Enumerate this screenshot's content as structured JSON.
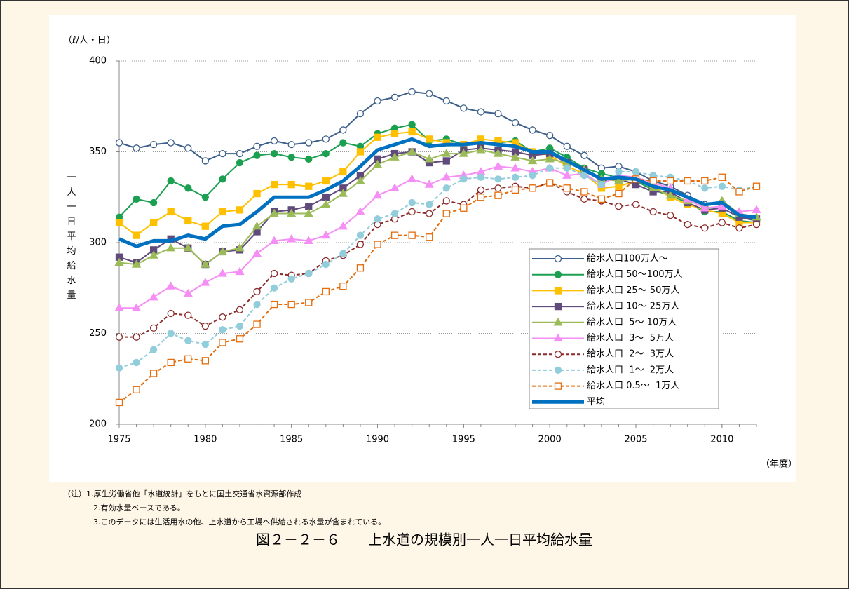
{
  "chart_data": {
    "type": "line",
    "y_unit": "（ℓ/人・日）",
    "y_label": "一人一日平均給水量",
    "x_unit": "（年度）",
    "notes": [
      "（注）1.厚生労働省他「水道統計」をもとに国土交通省水資源部作成",
      "2.有効水量ベースである。",
      "3.このデータには生活用水の他、上水道から工場へ供給される水量が含まれている。"
    ],
    "caption": "図２－２－６　　上水道の規模別一人一日平均給水量",
    "x": [
      1975,
      1976,
      1977,
      1978,
      1979,
      1980,
      1981,
      1982,
      1983,
      1984,
      1985,
      1986,
      1987,
      1988,
      1989,
      1990,
      1991,
      1992,
      1993,
      1994,
      1995,
      1996,
      1997,
      1998,
      1999,
      2000,
      2001,
      2002,
      2003,
      2004,
      2005,
      2006,
      2007,
      2008,
      2009,
      2010,
      2011,
      2012
    ],
    "xlim": [
      1975,
      2012
    ],
    "xticks": [
      1975,
      1980,
      1985,
      1990,
      1995,
      2000,
      2005,
      2010
    ],
    "ylim": [
      200,
      400
    ],
    "yticks": [
      200,
      250,
      300,
      350,
      400
    ],
    "grid": true,
    "series": [
      {
        "name": "給水人口100万人～",
        "color": "#3d5f8a",
        "marker": "circle-open",
        "dash": false,
        "values": [
          355,
          352,
          354,
          355,
          352,
          345,
          349,
          349,
          353,
          356,
          354,
          355,
          357,
          362,
          371,
          378,
          380,
          383,
          382,
          378,
          374,
          372,
          371,
          366,
          362,
          359,
          353,
          348,
          341,
          342,
          339,
          334,
          331,
          326,
          321,
          322,
          314,
          312
        ]
      },
      {
        "name": "給水人口 50～100万人",
        "color": "#1aa050",
        "marker": "circle",
        "dash": false,
        "values": [
          314,
          324,
          322,
          334,
          330,
          325,
          335,
          344,
          348,
          349,
          347,
          346,
          349,
          355,
          353,
          360,
          363,
          365,
          356,
          357,
          354,
          355,
          355,
          356,
          350,
          352,
          347,
          341,
          338,
          336,
          334,
          329,
          326,
          322,
          317,
          317,
          312,
          311
        ]
      },
      {
        "name": "給水人口 25～ 50万人",
        "color": "#ffc000",
        "marker": "square",
        "dash": false,
        "values": [
          311,
          304,
          311,
          317,
          312,
          309,
          317,
          318,
          327,
          332,
          332,
          331,
          334,
          339,
          350,
          358,
          360,
          361,
          357,
          355,
          354,
          357,
          356,
          355,
          350,
          348,
          342,
          338,
          330,
          331,
          334,
          331,
          325,
          321,
          318,
          316,
          311,
          311
        ]
      },
      {
        "name": "給水人口 10～ 25万人",
        "color": "#604a7b",
        "marker": "square",
        "dash": false,
        "values": [
          292,
          289,
          296,
          302,
          297,
          288,
          295,
          296,
          306,
          317,
          318,
          320,
          325,
          330,
          337,
          346,
          349,
          350,
          344,
          345,
          351,
          352,
          351,
          350,
          348,
          349,
          344,
          340,
          334,
          335,
          332,
          328,
          328,
          322,
          318,
          319,
          314,
          313
        ]
      },
      {
        "name": "給水人口  5～ 10万人",
        "color": "#9bbb59",
        "marker": "triangle",
        "dash": false,
        "values": [
          289,
          288,
          293,
          297,
          297,
          288,
          295,
          297,
          309,
          316,
          316,
          316,
          321,
          327,
          334,
          343,
          347,
          350,
          346,
          349,
          349,
          351,
          349,
          347,
          345,
          346,
          344,
          340,
          335,
          334,
          335,
          330,
          326,
          323,
          320,
          323,
          316,
          314
        ]
      },
      {
        "name": "給水人口  3～  5万人",
        "color": "#f58ef5",
        "marker": "triangle",
        "dash": false,
        "values": [
          264,
          264,
          270,
          276,
          272,
          278,
          283,
          284,
          294,
          301,
          302,
          301,
          304,
          309,
          317,
          326,
          330,
          335,
          332,
          336,
          337,
          339,
          342,
          341,
          339,
          341,
          337,
          338,
          332,
          337,
          336,
          333,
          330,
          324,
          319,
          320,
          317,
          318
        ]
      },
      {
        "name": "給水人口  2～  3万人",
        "color": "#8b2b2b",
        "marker": "circle-open",
        "dash": true,
        "values": [
          248,
          248,
          253,
          261,
          260,
          254,
          259,
          263,
          273,
          283,
          282,
          283,
          290,
          293,
          299,
          310,
          313,
          317,
          316,
          323,
          321,
          329,
          330,
          331,
          330,
          333,
          328,
          324,
          323,
          320,
          321,
          317,
          315,
          310,
          308,
          311,
          308,
          310
        ]
      },
      {
        "name": "給水人口  1～  2万人",
        "color": "#92cddc",
        "marker": "circle",
        "dash": true,
        "values": [
          231,
          234,
          241,
          250,
          246,
          244,
          252,
          254,
          266,
          275,
          280,
          283,
          288,
          294,
          304,
          313,
          316,
          322,
          321,
          330,
          335,
          336,
          335,
          336,
          337,
          341,
          341,
          337,
          332,
          339,
          339,
          337,
          336,
          334,
          330,
          331,
          329,
          331
        ]
      },
      {
        "name": "給水人口 0.5～  1万人",
        "color": "#e46c0a",
        "marker": "square-open",
        "dash": true,
        "values": [
          212,
          219,
          228,
          234,
          236,
          235,
          245,
          247,
          255,
          266,
          266,
          267,
          273,
          276,
          286,
          299,
          304,
          304,
          303,
          316,
          319,
          325,
          326,
          329,
          330,
          333,
          330,
          328,
          324,
          327,
          335,
          334,
          334,
          334,
          334,
          336,
          328,
          331
        ]
      },
      {
        "name": "平均",
        "color": "#0070c0",
        "marker": "none",
        "dash": false,
        "width": 5,
        "values": [
          302,
          298,
          301,
          301,
          304,
          302,
          309,
          310,
          317,
          325,
          325,
          325,
          329,
          334,
          342,
          351,
          354,
          357,
          353,
          354,
          354,
          355,
          354,
          353,
          350,
          350,
          345,
          340,
          335,
          336,
          335,
          331,
          329,
          325,
          321,
          322,
          315,
          314
        ]
      }
    ]
  }
}
